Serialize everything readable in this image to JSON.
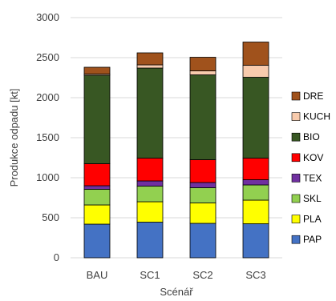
{
  "chart_data": {
    "type": "bar",
    "stacked": true,
    "title": "",
    "xlabel": "Scénář",
    "ylabel": "Produkce odpadu [kt]",
    "ylim": [
      0,
      3000
    ],
    "yticks": [
      0,
      500,
      1000,
      1500,
      2000,
      2500,
      3000
    ],
    "grid": true,
    "legend_position": "right",
    "categories": [
      "BAU",
      "SC1",
      "SC2",
      "SC3"
    ],
    "series": [
      {
        "name": "PAP",
        "color": "#4472C4",
        "values": [
          420,
          445,
          430,
          425
        ]
      },
      {
        "name": "PLA",
        "color": "#FFFF00",
        "values": [
          240,
          255,
          255,
          295
        ]
      },
      {
        "name": "SKL",
        "color": "#92D050",
        "values": [
          195,
          195,
          190,
          190
        ]
      },
      {
        "name": "TEX",
        "color": "#7030A0",
        "values": [
          45,
          65,
          65,
          65
        ]
      },
      {
        "name": "KOV",
        "color": "#FF0000",
        "values": [
          275,
          285,
          285,
          270
        ]
      },
      {
        "name": "BIO",
        "color": "#385723",
        "values": [
          1105,
          1125,
          1060,
          1010
        ]
      },
      {
        "name": "KUCH",
        "color": "#F8CBAD",
        "values": [
          15,
          40,
          50,
          150
        ]
      },
      {
        "name": "DRE",
        "color": "#A0521C",
        "values": [
          85,
          150,
          170,
          290
        ]
      }
    ]
  }
}
